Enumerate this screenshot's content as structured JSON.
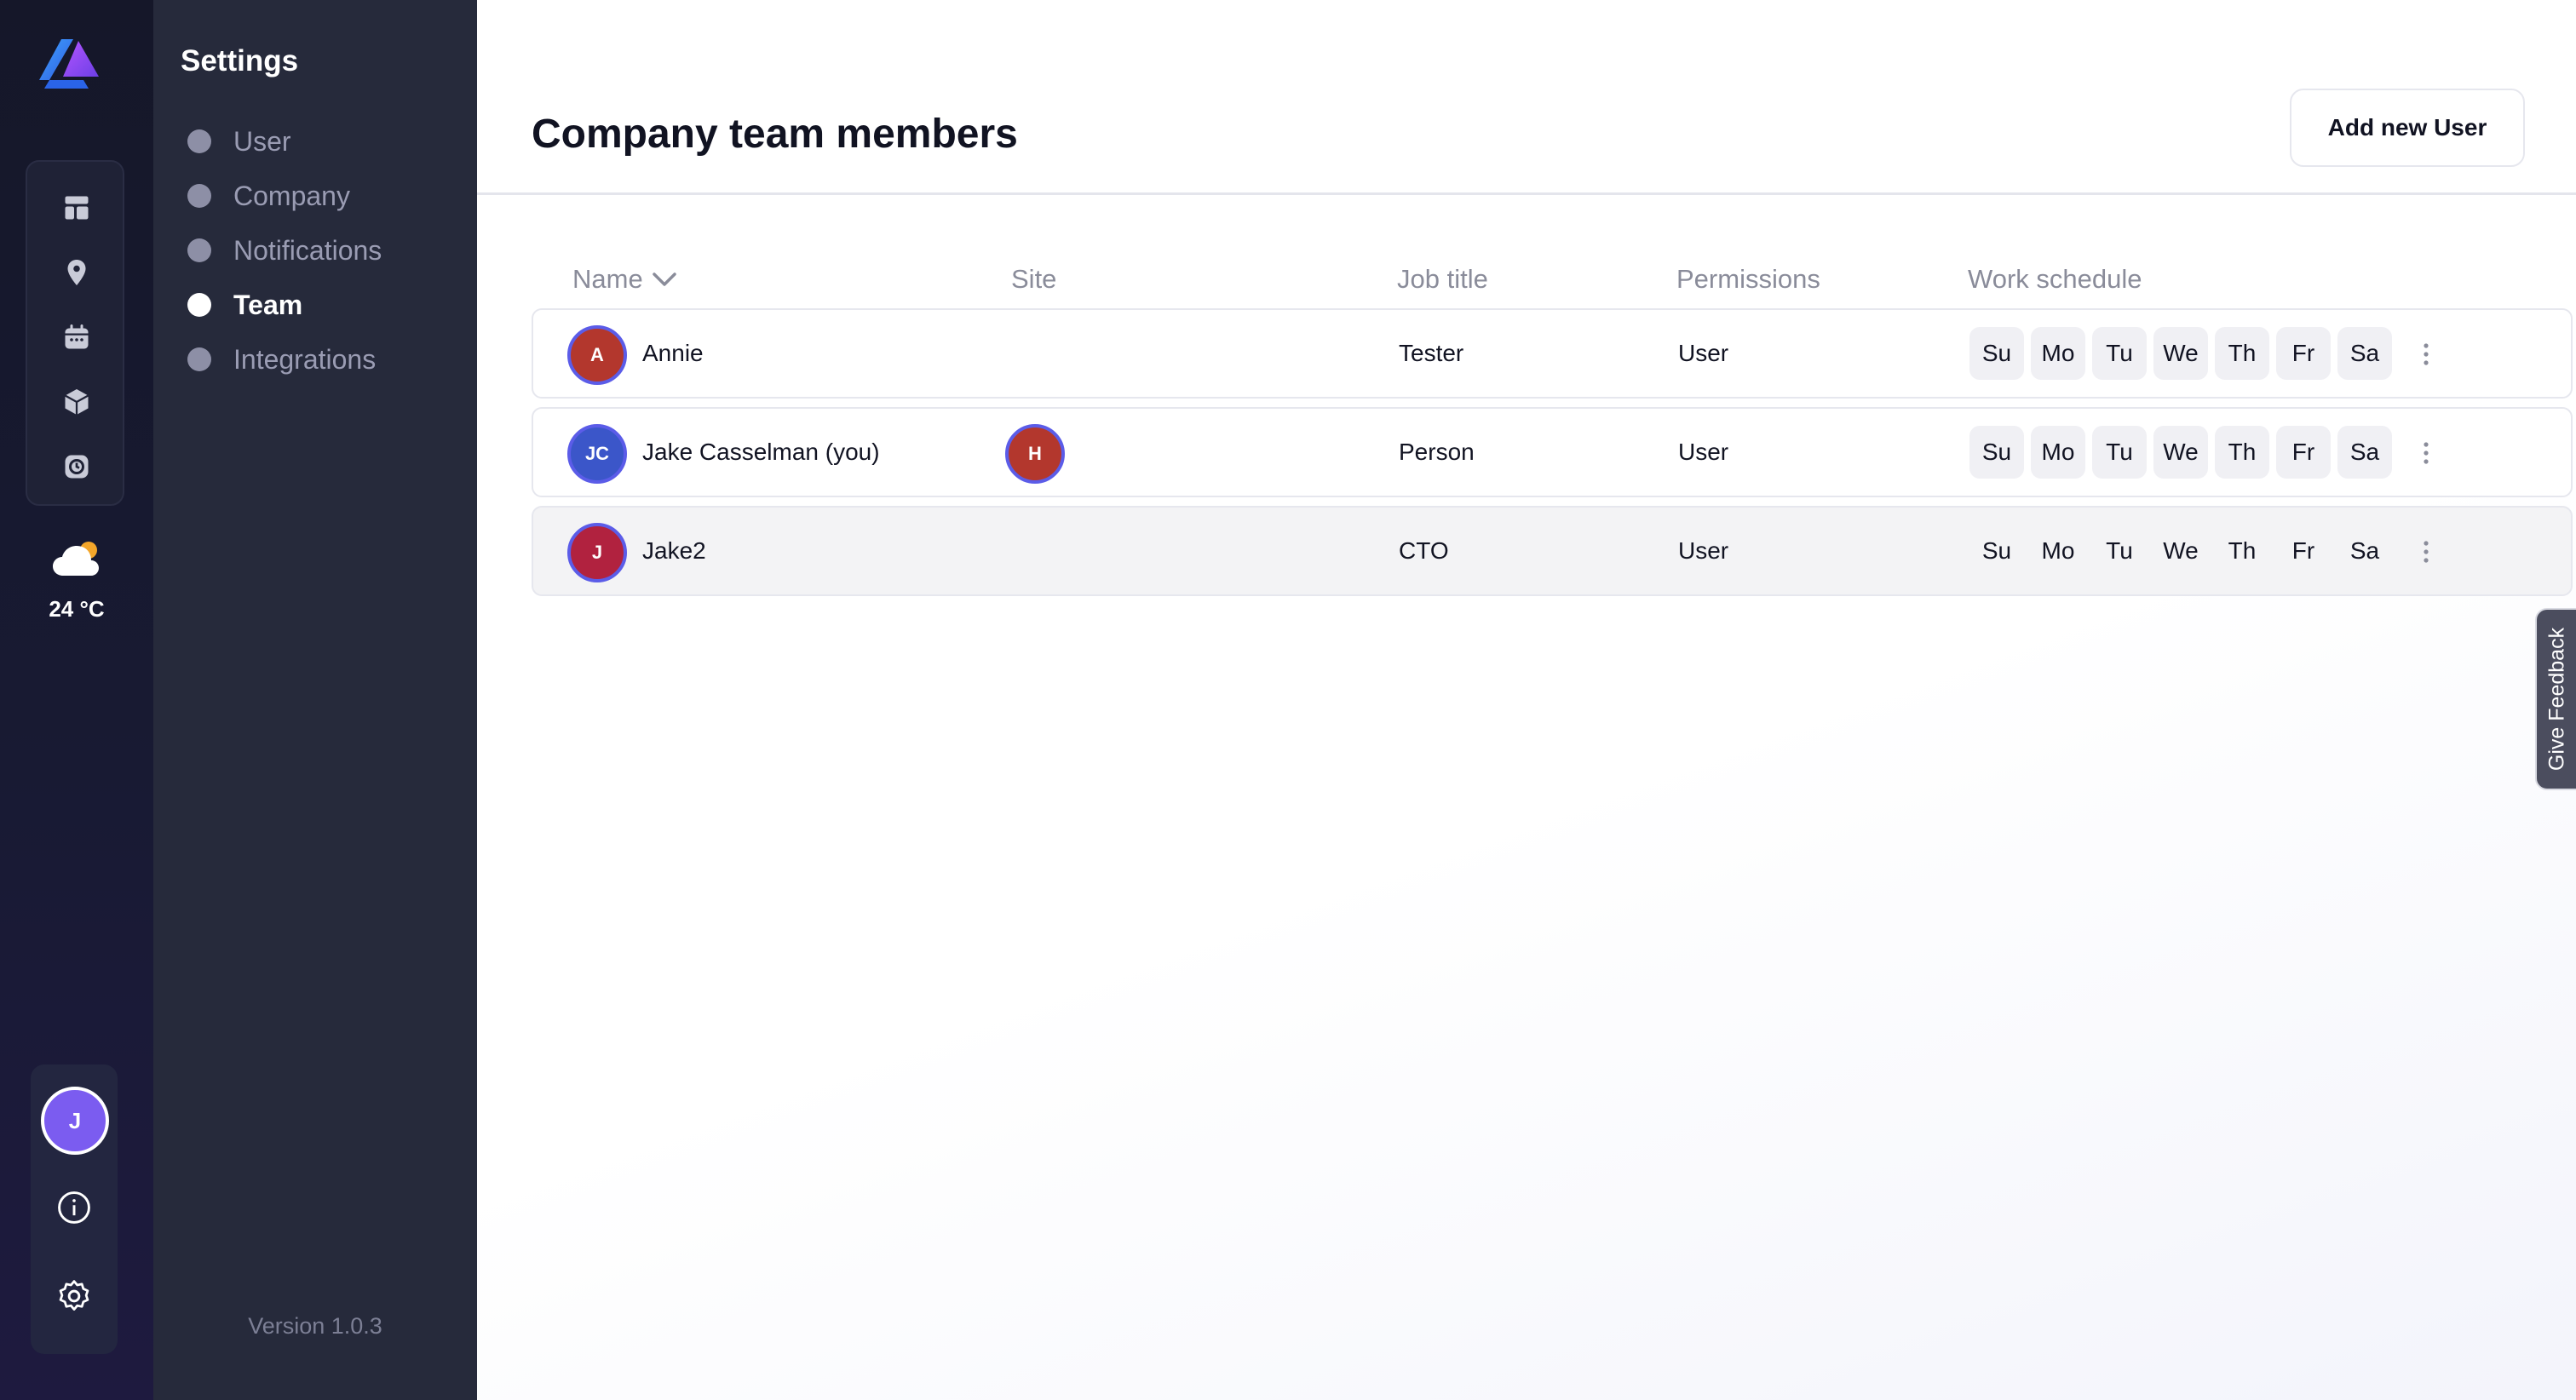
{
  "weather": {
    "temperature": "24 °C",
    "icon": "partly-cloudy-icon"
  },
  "user": {
    "initial": "J"
  },
  "settings": {
    "title": "Settings",
    "items": [
      {
        "label": "User",
        "active": false
      },
      {
        "label": "Company",
        "active": false
      },
      {
        "label": "Notifications",
        "active": false
      },
      {
        "label": "Team",
        "active": true
      },
      {
        "label": "Integrations",
        "active": false
      }
    ],
    "version": "Version 1.0.3"
  },
  "main": {
    "title": "Company team members",
    "add_button": "Add new User",
    "columns": {
      "name": "Name",
      "site": "Site",
      "job_title": "Job title",
      "permissions": "Permissions",
      "work_schedule": "Work schedule"
    },
    "rows": [
      {
        "initials": "A",
        "avatar_color": "#b3372d",
        "name": "Annie",
        "site": "",
        "job_title": "Tester",
        "permission": "User"
      },
      {
        "initials": "JC",
        "avatar_color": "#3b56c9",
        "name": "Jake Casselman (you)",
        "site_initial": "H",
        "site_color": "#b3372d",
        "job_title": "Person",
        "permission": "User"
      },
      {
        "initials": "J",
        "avatar_color": "#b1223f",
        "name": "Jake2",
        "site": "",
        "job_title": "CTO",
        "permission": "User"
      }
    ],
    "days": [
      "Su",
      "Mo",
      "Tu",
      "We",
      "Th",
      "Fr",
      "Sa"
    ]
  },
  "feedback": "Give Feedback"
}
